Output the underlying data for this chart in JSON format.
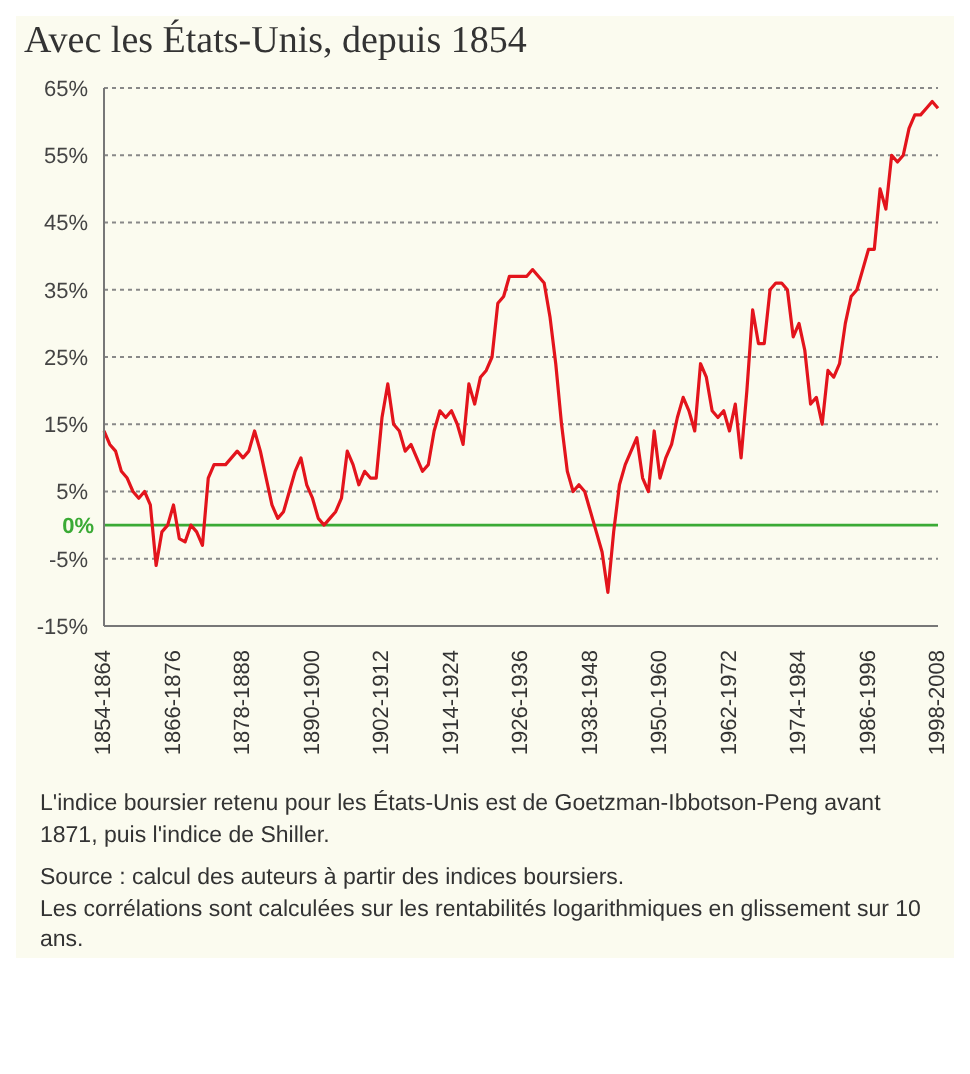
{
  "chart_data": {
    "type": "line",
    "title": "Avec les États-Unis, depuis 1854",
    "categories": [
      "1854-1864",
      null,
      null,
      null,
      null,
      null,
      null,
      null,
      null,
      null,
      null,
      null,
      "1866-1876",
      null,
      null,
      null,
      null,
      null,
      null,
      null,
      null,
      null,
      null,
      null,
      "1878-1888",
      null,
      null,
      null,
      null,
      null,
      null,
      null,
      null,
      null,
      null,
      null,
      "1890-1900",
      null,
      null,
      null,
      null,
      null,
      null,
      null,
      null,
      null,
      null,
      null,
      "1902-1912",
      null,
      null,
      null,
      null,
      null,
      null,
      null,
      null,
      null,
      null,
      null,
      "1914-1924",
      null,
      null,
      null,
      null,
      null,
      null,
      null,
      null,
      null,
      null,
      null,
      "1926-1936",
      null,
      null,
      null,
      null,
      null,
      null,
      null,
      null,
      null,
      null,
      null,
      "1938-1948",
      null,
      null,
      null,
      null,
      null,
      null,
      null,
      null,
      null,
      null,
      null,
      "1950-1960",
      null,
      null,
      null,
      null,
      null,
      null,
      null,
      null,
      null,
      null,
      null,
      "1962-1972",
      null,
      null,
      null,
      null,
      null,
      null,
      null,
      null,
      null,
      null,
      null,
      "1974-1984",
      null,
      null,
      null,
      null,
      null,
      null,
      null,
      null,
      null,
      null,
      null,
      "1986-1996",
      null,
      null,
      null,
      null,
      null,
      null,
      null,
      null,
      null,
      null,
      null,
      "1998-2008"
    ],
    "series": [
      {
        "color": "#e3141c",
        "values": [
          14,
          12,
          11,
          8,
          7,
          5,
          4,
          5,
          3,
          -6,
          -1,
          0,
          3,
          -2,
          -2.5,
          0,
          -1,
          -3,
          7,
          9,
          9,
          9,
          10,
          11,
          10,
          11,
          14,
          11,
          7,
          3,
          1,
          2,
          5,
          8,
          10,
          6,
          4,
          1,
          0,
          1,
          2,
          4,
          11,
          9,
          6,
          8,
          7,
          7,
          16,
          21,
          15,
          14,
          11,
          12,
          10,
          8,
          9,
          14,
          17,
          16,
          17,
          15,
          12,
          21,
          18,
          22,
          23,
          25,
          33,
          34,
          37,
          37,
          37,
          37,
          38,
          37,
          36,
          31,
          24,
          15,
          8,
          5,
          6,
          5,
          2,
          -1,
          -4,
          -10,
          -1,
          6,
          9,
          11,
          13,
          7,
          5,
          14,
          7,
          10,
          12,
          16,
          19,
          17,
          14,
          24,
          22,
          17,
          16,
          17,
          14,
          18,
          10,
          20,
          32,
          27,
          27,
          35,
          36,
          36,
          35,
          28,
          30,
          26,
          18,
          19,
          15,
          23,
          22,
          24,
          30,
          34,
          35,
          38,
          41,
          41,
          50,
          47,
          55,
          54,
          55,
          59,
          61,
          61,
          62,
          63,
          62
        ]
      }
    ],
    "ylim": [
      -15,
      65
    ],
    "yticks": [
      {
        "value": -15,
        "label": "-15%"
      },
      {
        "value": -5,
        "label": "-5%"
      },
      {
        "value": 5,
        "label": "5%"
      },
      {
        "value": 15,
        "label": "15%"
      },
      {
        "value": 25,
        "label": "25%"
      },
      {
        "value": 35,
        "label": "35%"
      },
      {
        "value": 45,
        "label": "45%"
      },
      {
        "value": 55,
        "label": "55%"
      },
      {
        "value": 65,
        "label": "65%"
      }
    ],
    "grid": "y",
    "line_style": "solid",
    "marker": "none",
    "ref_lines": [
      {
        "axis": "y",
        "value": 0,
        "label": "0%",
        "color": "#3aaa35"
      }
    ],
    "annotations": [
      "L'indice boursier retenu pour les États-Unis est de Goetzman-Ibbotson-Peng avant 1871, puis l'indice de Shiller.",
      "Source : calcul des auteurs à partir des indices boursiers.",
      "Les corrélations sont calculées sur les rentabilités logarithmiques en glissement sur 10 ans."
    ]
  }
}
